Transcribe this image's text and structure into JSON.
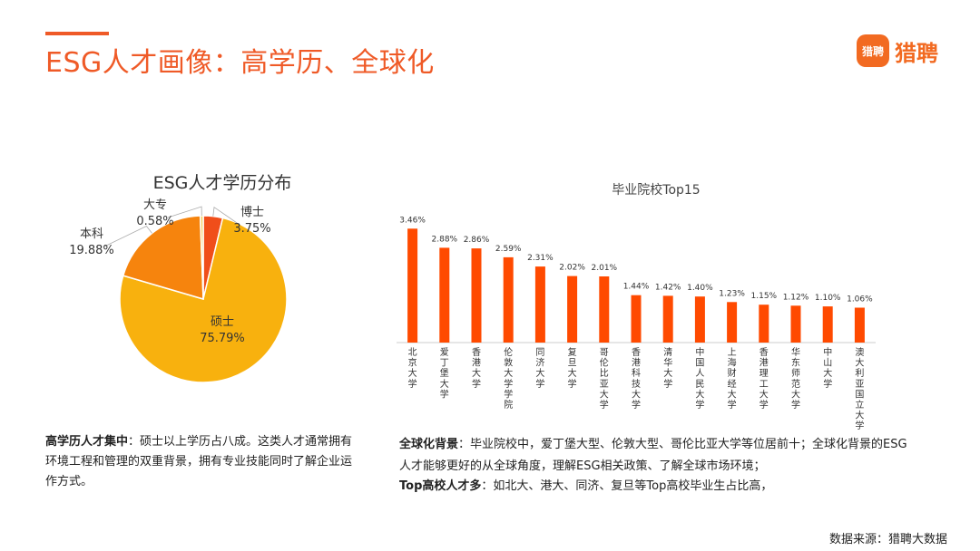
{
  "header": {
    "title": "ESG人才画像：高学历、全球化",
    "logo_mark_text": "猎聘",
    "logo_text": "猎聘",
    "accent_color": "#ef5a27"
  },
  "chart_data": [
    {
      "type": "pie",
      "title": "ESG人才学历分布",
      "slices": [
        {
          "label": "博士",
          "value": 3.75,
          "display": "3.75%",
          "color": "#f04e1a"
        },
        {
          "label": "硕士",
          "value": 75.79,
          "display": "75.79%",
          "color": "#f8b10e"
        },
        {
          "label": "本科",
          "value": 19.88,
          "display": "19.88%",
          "color": "#f6840d"
        },
        {
          "label": "大专",
          "value": 0.58,
          "display": "0.58%",
          "color": "#f5d36a"
        }
      ]
    },
    {
      "type": "bar",
      "title": "毕业院校Top15",
      "bar_color": "#ff4a00",
      "ylim": [
        0,
        3.8
      ],
      "categories": [
        "北京大学",
        "爱丁堡大学",
        "香港大学",
        "伦敦大学学院",
        "同济大学",
        "复旦大学",
        "哥伦比亚大学",
        "香港科技大学",
        "清华大学",
        "中国人民大学",
        "上海财经大学",
        "香港理工大学",
        "华东师范大学",
        "中山大学",
        "澳大利亚国立大学"
      ],
      "values": [
        3.46,
        2.88,
        2.86,
        2.59,
        2.31,
        2.02,
        2.01,
        1.44,
        1.42,
        1.4,
        1.23,
        1.15,
        1.12,
        1.1,
        1.06
      ],
      "labels": [
        "3.46%",
        "2.88%",
        "2.86%",
        "2.59%",
        "2.31%",
        "2.02%",
        "2.01%",
        "1.44%",
        "1.42%",
        "1.40%",
        "1.23%",
        "1.15%",
        "1.12%",
        "1.10%",
        "1.06%"
      ]
    }
  ],
  "notes": {
    "left_bold": "高学历人才集中",
    "left_text": "：硕士以上学历占八成。这类人才通常拥有环境工程和管理的双重背景，拥有专业技能同时了解企业运作方式。",
    "right1_bold": "全球化背景",
    "right1_text": "：毕业院校中，爱丁堡大型、伦敦大型、哥伦比亚大学等位居前十；全球化背景的ESG人才能够更好的从全球角度，理解ESG相关政策、了解全球市场环境；",
    "right2_bold": "Top高校人才多",
    "right2_text": "：如北大、港大、同济、复旦等Top高校毕业生占比高，"
  },
  "source": "数据来源：猎聘大数据"
}
